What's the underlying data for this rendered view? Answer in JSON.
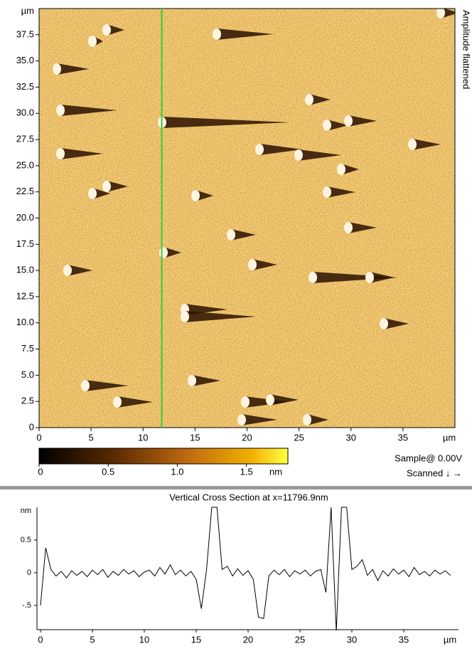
{
  "chart_data": [
    {
      "type": "image",
      "side_label": "Amplitude flattened",
      "x_unit": "µm",
      "y_unit": "µm",
      "xlim": [
        0,
        40
      ],
      "ylim": [
        0,
        40
      ],
      "xticks": [
        0,
        5,
        10,
        15,
        20,
        25,
        30,
        35
      ],
      "yticks": [
        0,
        2.5,
        {
          "value": 5,
          "label": "5.0"
        },
        7.5,
        {
          "value": 10,
          "label": "10.0"
        },
        12.5,
        {
          "value": 15,
          "label": "15.0"
        },
        17.5,
        {
          "value": 20,
          "label": "20.0"
        },
        22.5,
        {
          "value": 25,
          "label": "25.0"
        },
        27.5,
        {
          "value": 30,
          "label": "30.0"
        },
        32.5,
        {
          "value": 35,
          "label": "35.0"
        },
        37.5
      ],
      "cursor_x": 11.7969,
      "cursor_color": "#2ecc40",
      "colorbar": {
        "lim": [
          0,
          1.8
        ],
        "ticks": [
          0,
          0.5,
          {
            "value": 1,
            "label": "1.0"
          },
          1.5
        ],
        "unit": "nm"
      },
      "sample_label": "Sample@ 0.00V",
      "scan_label": "Scanned ↓ →"
    },
    {
      "type": "line",
      "title": "Vertical Cross Section at x=11796.9nm",
      "x_unit": "µm",
      "y_unit": "nm",
      "xlim": [
        0,
        40
      ],
      "ylim": [
        -0.87,
        1.0
      ],
      "xticks": [
        0,
        5,
        10,
        15,
        20,
        25,
        30,
        35
      ],
      "yticks": [
        {
          "value": -0.5,
          "label": "-.5"
        },
        0,
        0.5
      ],
      "color": "#000000",
      "x": [
        0,
        0.5,
        1,
        1.5,
        2,
        2.5,
        3,
        3.5,
        4,
        4.5,
        5,
        5.5,
        6,
        6.5,
        7,
        7.5,
        8,
        8.5,
        9,
        9.5,
        10,
        10.5,
        11,
        11.5,
        12,
        12.5,
        13,
        13.5,
        14,
        14.5,
        15,
        15.5,
        16,
        16.5,
        17,
        17.5,
        18,
        18.5,
        19,
        19.5,
        20,
        20.5,
        21,
        21.5,
        22,
        22.5,
        23,
        23.5,
        24,
        24.5,
        25,
        25.5,
        26,
        26.5,
        27,
        27.5,
        28,
        28.5,
        29,
        29.5,
        30,
        30.5,
        31,
        31.5,
        32,
        32.5,
        33,
        33.5,
        34,
        34.5,
        35,
        35.5,
        36,
        36.5,
        37,
        37.5,
        38,
        38.5,
        39,
        39.5
      ],
      "values": [
        -0.5,
        0.38,
        0.05,
        -0.05,
        0.02,
        -0.08,
        0.03,
        -0.04,
        0.02,
        -0.06,
        0.04,
        -0.03,
        0.05,
        -0.07,
        0.02,
        -0.04,
        0.05,
        -0.02,
        0.03,
        -0.06,
        0.01,
        0.04,
        -0.05,
        0.08,
        -0.02,
        0.12,
        -0.03,
        0.04,
        -0.05,
        0.02,
        -0.1,
        -0.55,
        0.05,
        1.0,
        1.0,
        0.05,
        0.1,
        -0.05,
        0.06,
        -0.04,
        0.03,
        -0.1,
        -0.68,
        -0.7,
        -0.05,
        0.04,
        -0.03,
        0.05,
        -0.06,
        0.03,
        -0.02,
        0.04,
        -0.05,
        0.02,
        0.05,
        -0.3,
        1.0,
        -0.9,
        1.0,
        1.0,
        0.05,
        0.1,
        0.2,
        -0.04,
        0.05,
        -0.12,
        0.03,
        -0.05,
        0.06,
        -0.02,
        0.04,
        -0.06,
        0.08,
        -0.03,
        0.02,
        -0.05,
        0.04,
        -0.02,
        0.03,
        -0.04
      ]
    }
  ]
}
